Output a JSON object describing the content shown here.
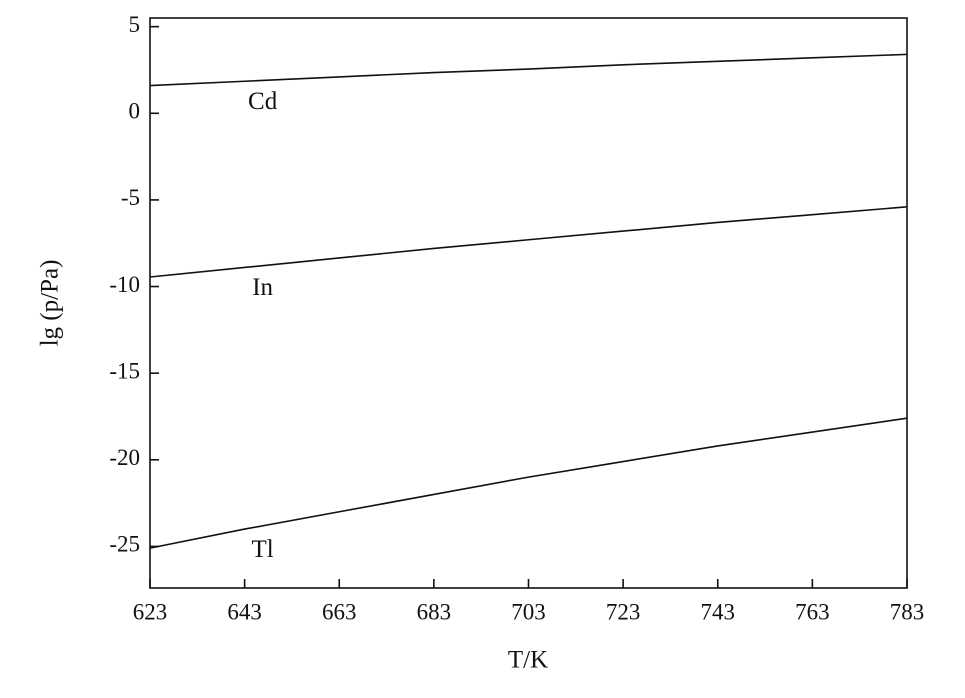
{
  "chart_data": {
    "type": "line",
    "x_label": "T/K",
    "y_label": "lg (p/Pa)",
    "x": [
      623,
      643,
      663,
      683,
      703,
      723,
      743,
      763,
      783
    ],
    "series": [
      {
        "name": "Cd",
        "color": "#111111",
        "values": [
          1.6,
          1.85,
          2.1,
          2.35,
          2.55,
          2.8,
          3.0,
          3.2,
          3.4
        ]
      },
      {
        "name": "In",
        "color": "#111111",
        "values": [
          -9.45,
          -8.9,
          -8.35,
          -7.8,
          -7.3,
          -6.8,
          -6.3,
          -5.85,
          -5.4
        ]
      },
      {
        "name": "Tl",
        "color": "#111111",
        "values": [
          -25.1,
          -24.0,
          -23.0,
          -22.0,
          -21.0,
          -20.1,
          -19.2,
          -18.4,
          -17.6
        ]
      }
    ],
    "xlim": [
      623,
      783
    ],
    "xticks": [
      623,
      643,
      663,
      683,
      703,
      723,
      743,
      763,
      783
    ],
    "ylim": [
      -27.4,
      5.5
    ],
    "yticks": [
      5,
      0,
      -5,
      -10,
      -15,
      -20,
      -25
    ],
    "grid": false
  }
}
